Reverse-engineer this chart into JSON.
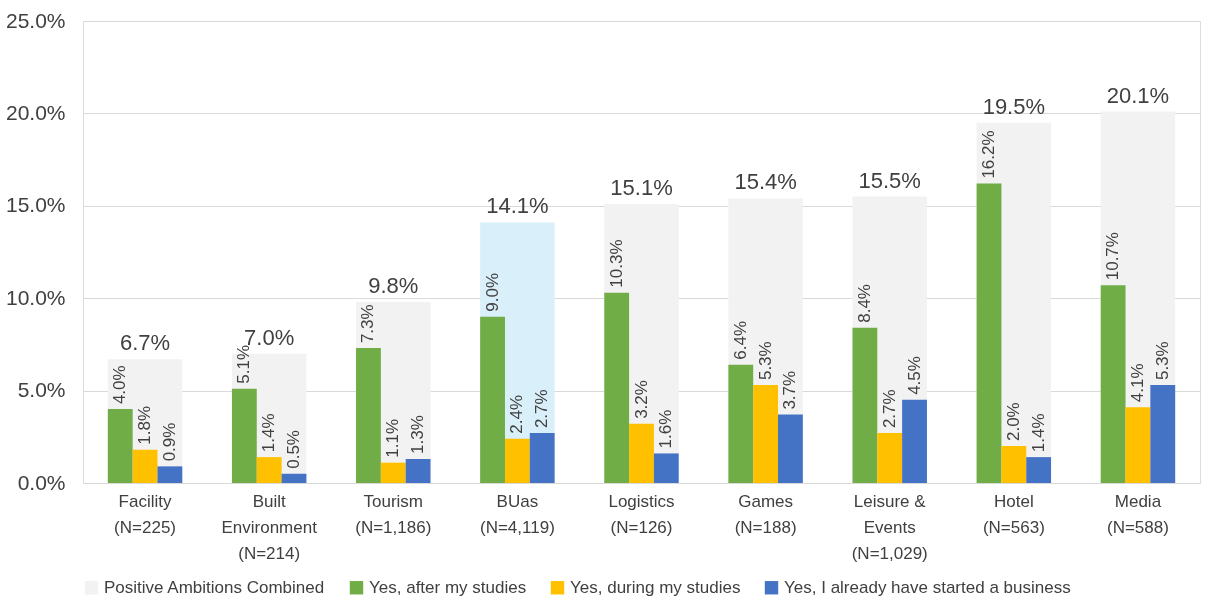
{
  "chart_data": {
    "type": "bar",
    "categories": [
      "Facility\n(N=225)",
      "Built\nEnvironment\n(N=214)",
      "Tourism\n(N=1,186)",
      "BUas\n(N=4,119)",
      "Logistics\n(N=126)",
      "Games\n(N=188)",
      "Leisure &\nEvents\n(N=1,029)",
      "Hotel\n(N=563)",
      "Media\n(N=588)"
    ],
    "series": [
      {
        "name": "Positive Ambitions Combined",
        "color": "#f2f2f2",
        "colors": [
          "#f2f2f2",
          "#f2f2f2",
          "#f2f2f2",
          "#d9eff9",
          "#f2f2f2",
          "#f2f2f2",
          "#f2f2f2",
          "#f2f2f2",
          "#f2f2f2"
        ],
        "values": [
          6.7,
          7.0,
          9.8,
          14.1,
          15.1,
          15.4,
          15.5,
          19.5,
          20.1
        ],
        "value_labels": [
          "6.7%",
          "7.0%",
          "9.8%",
          "14.1%",
          "15.1%",
          "15.4%",
          "15.5%",
          "19.5%",
          "20.1%"
        ]
      },
      {
        "name": "Yes, after my studies",
        "color": "#70ad47",
        "values": [
          4.0,
          5.1,
          7.3,
          9.0,
          10.3,
          6.4,
          8.4,
          16.2,
          10.7
        ],
        "value_labels": [
          "4.0%",
          "5.1%",
          "7.3%",
          "9.0%",
          "10.3%",
          "6.4%",
          "8.4%",
          "16.2%",
          "10.7%"
        ]
      },
      {
        "name": "Yes, during my studies",
        "color": "#ffc000",
        "values": [
          1.8,
          1.4,
          1.1,
          2.4,
          3.2,
          5.3,
          2.7,
          2.0,
          4.1
        ],
        "value_labels": [
          "1.8%",
          "1.4%",
          "1.1%",
          "2.4%",
          "3.2%",
          "5.3%",
          "2.7%",
          "2.0%",
          "4.1%"
        ]
      },
      {
        "name": "Yes, I already have started a business",
        "color": "#4472c4",
        "values": [
          0.9,
          0.5,
          1.3,
          2.7,
          1.6,
          3.7,
          4.5,
          1.4,
          5.3
        ],
        "value_labels": [
          "0.9%",
          "0.5%",
          "1.3%",
          "2.7%",
          "1.6%",
          "3.7%",
          "4.5%",
          "1.4%",
          "5.3%"
        ]
      }
    ],
    "ylim": [
      0,
      25
    ],
    "yticks": [
      {
        "value": 0,
        "label": "0.0%"
      },
      {
        "value": 5,
        "label": "5.0%"
      },
      {
        "value": 10,
        "label": "10.0%"
      },
      {
        "value": 15,
        "label": "15.0%"
      },
      {
        "value": 20,
        "label": "20.0%"
      },
      {
        "value": 25,
        "label": "25.0%"
      }
    ],
    "grid": "y",
    "legend": "bottom"
  }
}
